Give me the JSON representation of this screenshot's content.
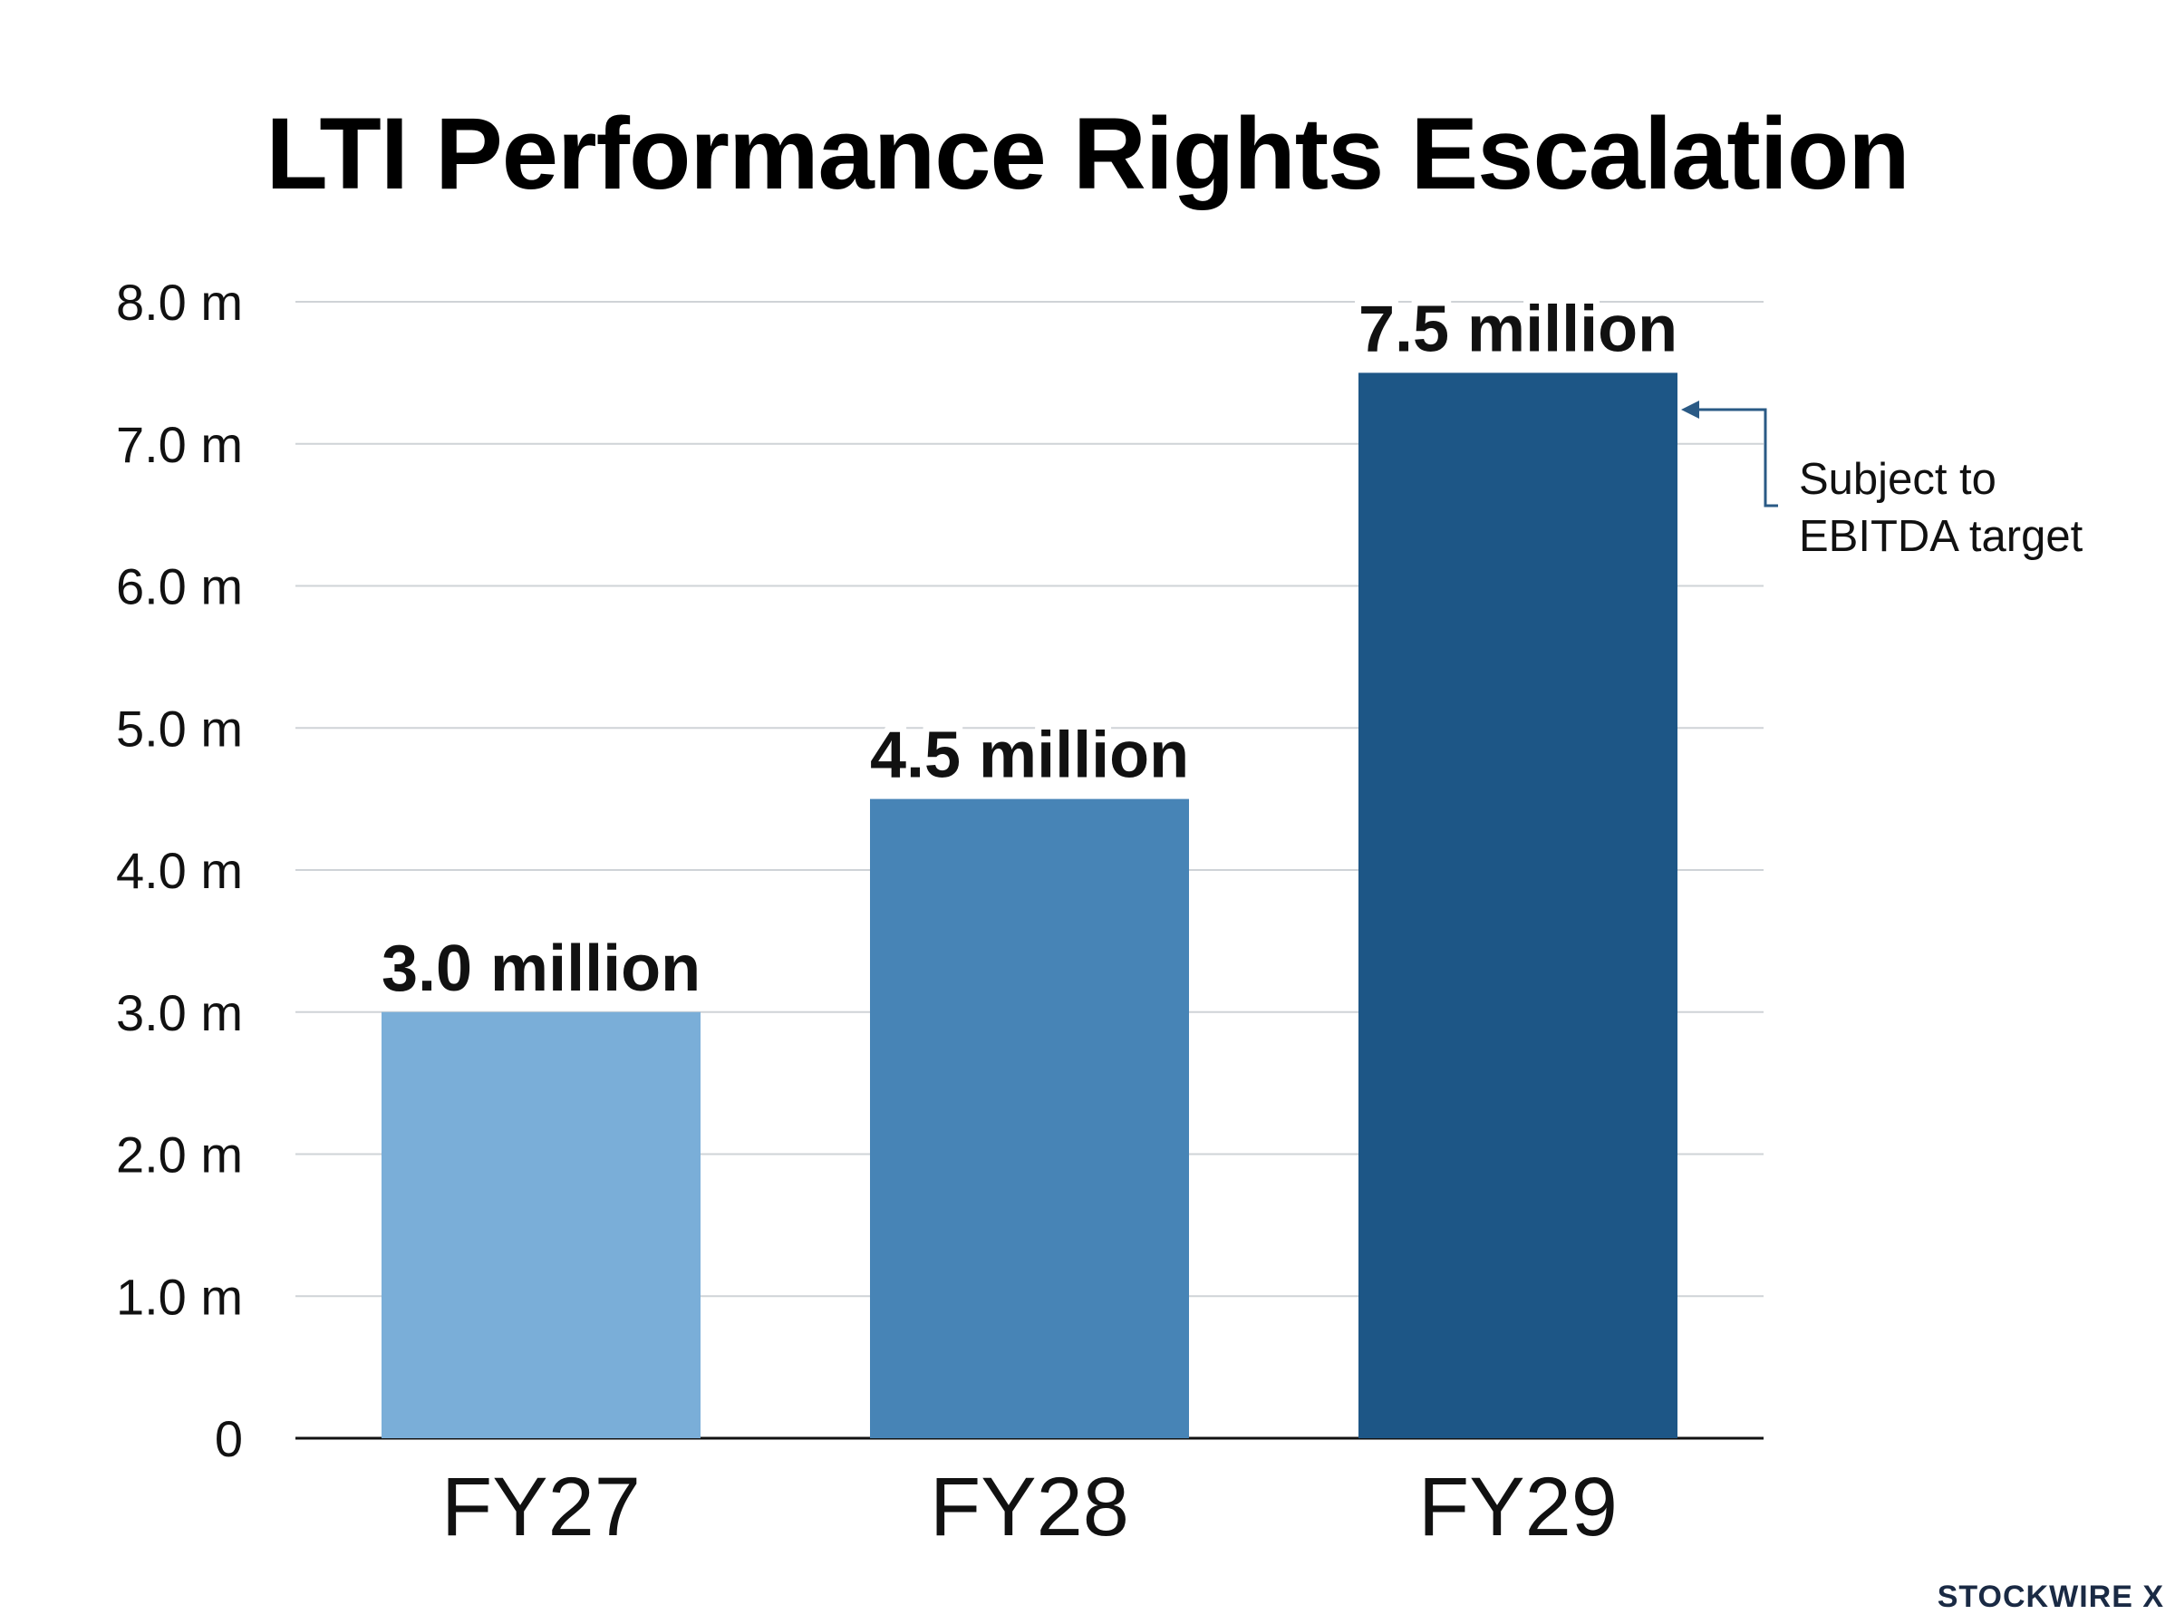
{
  "chart_data": {
    "type": "bar",
    "title": "LTI Performance Rights Escalation",
    "xlabel": "",
    "ylabel": "",
    "categories": [
      "FY27",
      "FY28",
      "FY29"
    ],
    "values": [
      3.0,
      4.5,
      7.5
    ],
    "data_labels": [
      "3.0 million",
      "4.5 million",
      "7.5 million"
    ],
    "bar_colors": [
      "#7aaed8",
      "#4784b6",
      "#1d5686"
    ],
    "ylim": [
      0,
      8
    ],
    "yticks": [
      0,
      1,
      2,
      3,
      4,
      5,
      6,
      7,
      8
    ],
    "ytick_labels": [
      "0",
      "1.0 m",
      "2.0 m",
      "3.0 m",
      "4.0 m",
      "5.0 m",
      "6.0 m",
      "7.0 m",
      "8.0 m"
    ],
    "grid": true,
    "legend": "none",
    "annotation": {
      "lines": [
        "Subject to",
        "EBITDA target"
      ],
      "target_category": "FY29",
      "color": "#2a5a85"
    }
  },
  "brand": "STOCKWIRE X"
}
